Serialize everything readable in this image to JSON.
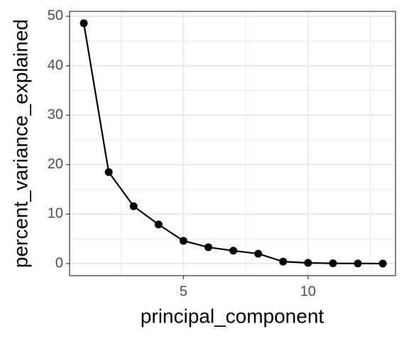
{
  "chart_data": {
    "type": "line",
    "x_label": "principal_component",
    "y_label": "percent_variance_explained",
    "x": [
      1,
      2,
      3,
      4,
      5,
      6,
      7,
      8,
      9,
      10,
      11,
      12,
      13
    ],
    "series": [
      {
        "name": "percent_variance_explained",
        "color": "#000000",
        "values": [
          48.6,
          18.5,
          11.6,
          7.9,
          4.6,
          3.3,
          2.6,
          2.0,
          0.4,
          0.15,
          0.05,
          0.02,
          0.0
        ]
      }
    ],
    "xlim": [
      0.43,
      13.51
    ],
    "xticks": [
      5,
      10
    ],
    "ylim": [
      -2.44,
      51.0
    ],
    "yticks": [
      0,
      10,
      20,
      30,
      40,
      50
    ],
    "grid": true
  }
}
